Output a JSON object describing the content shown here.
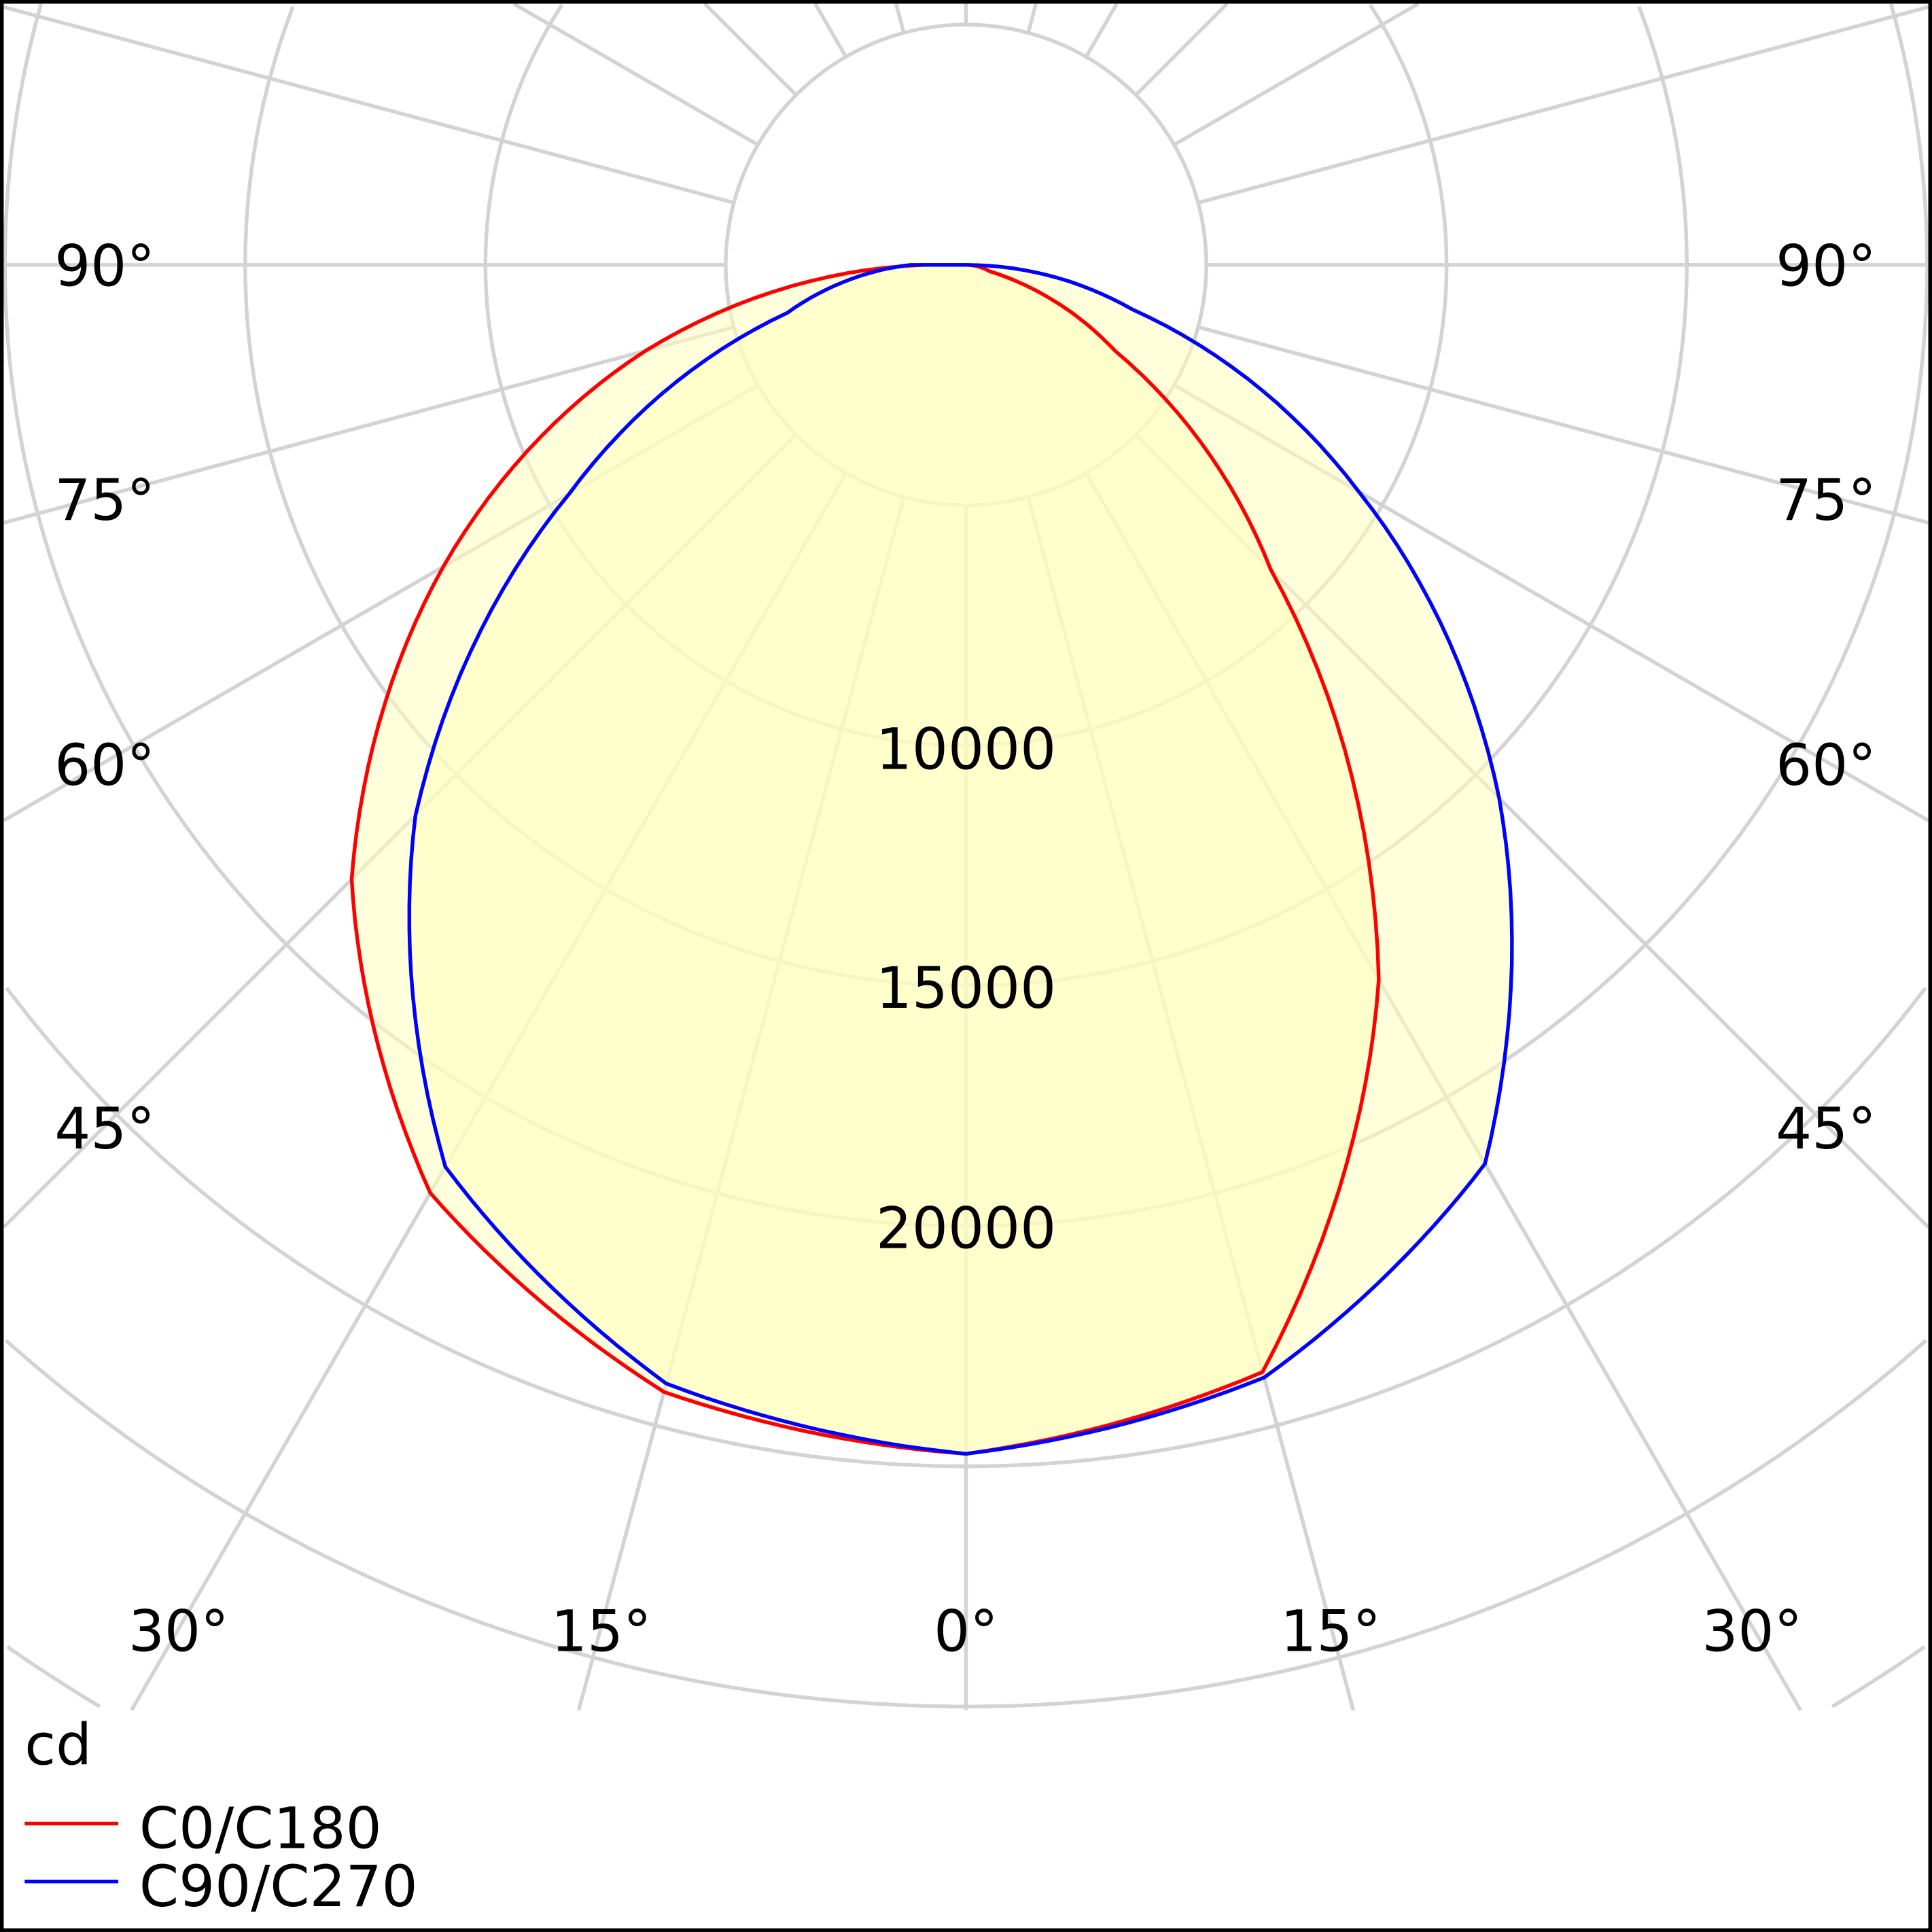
{
  "chart_data": {
    "type": "polar",
    "title": "",
    "unit_label": "cd",
    "radial_max": 35000,
    "radial_step": 5000,
    "radial_tick_labels": [
      "10000",
      "15000",
      "20000"
    ],
    "angle_step": 15,
    "side_angle_labels": [
      "90°",
      "75°",
      "60°",
      "45°"
    ],
    "bottom_angle_labels": [
      "30°",
      "15°",
      "0°",
      "15°",
      "30°"
    ],
    "angles": [
      0,
      15,
      30,
      45,
      60,
      75,
      90
    ],
    "series": [
      {
        "name": "C0/C180",
        "color": "#ff0000",
        "left_C180": [
          24740,
          24280,
          22300,
          18080,
          12560,
          6900,
          870
        ],
        "right_C0": [
          24740,
          23850,
          17180,
          8970,
          3590,
          500,
          0
        ]
      },
      {
        "name": "C90/C270",
        "color": "#0000ff",
        "left_C270": [
          24740,
          24100,
          21670,
          16200,
          9540,
          3850,
          1150
        ],
        "right_C90": [
          24740,
          23970,
          21600,
          15690,
          9440,
          3590,
          0
        ]
      }
    ],
    "fill_color": "#ffffc0",
    "grid": true,
    "legend_position": "bottom-left"
  }
}
